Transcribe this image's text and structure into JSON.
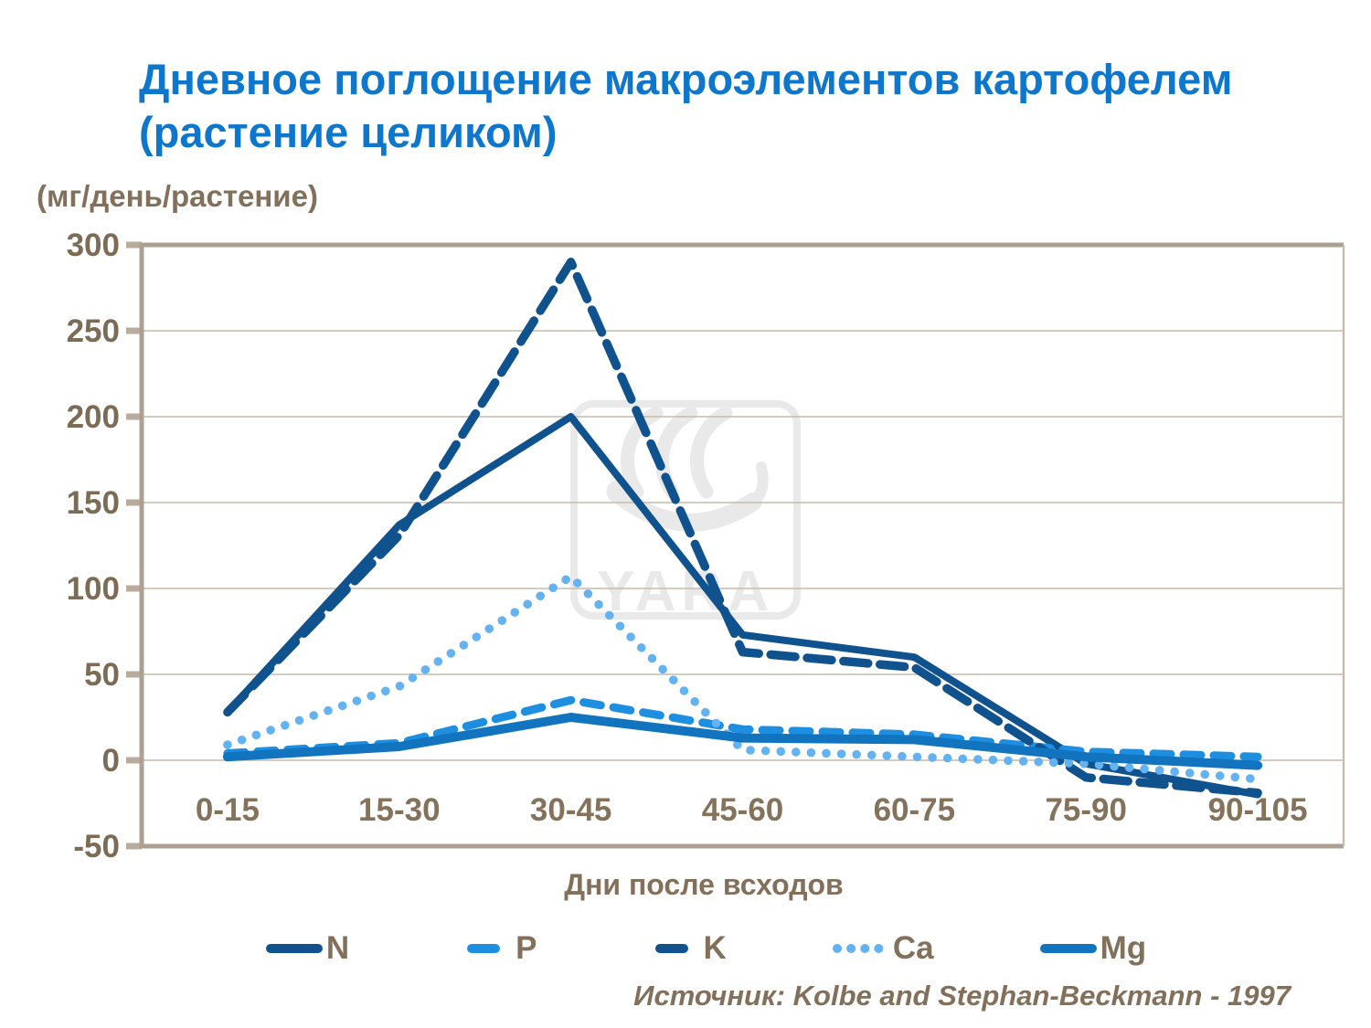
{
  "header": {
    "title_line1": "Дневное поглощение макроэлементов картофелем",
    "title_line2": "(растение целиком)"
  },
  "chart_data": {
    "type": "line",
    "title": "Дневное поглощение макроэлементов картофелем (растение целиком)",
    "ylabel": "(мг/день/растение)",
    "xlabel": "Дни после всходов",
    "categories": [
      "0-15",
      "15-30",
      "30-45",
      "45-60",
      "60-75",
      "75-90",
      "90-105"
    ],
    "ylim": [
      -50,
      300
    ],
    "ytick_step": 50,
    "ytick_labels": [
      "300",
      "250",
      "200",
      "150",
      "100",
      "50",
      "0",
      "-50"
    ],
    "grid": "horizontal",
    "legend_position": "bottom",
    "series": [
      {
        "name": "N",
        "color": "#10528E",
        "style": "solid",
        "values": [
          28,
          137,
          200,
          73,
          60,
          -2,
          -20
        ]
      },
      {
        "name": "P",
        "color": "#1E8FE0",
        "style": "dash",
        "values": [
          4,
          10,
          35,
          18,
          15,
          5,
          2
        ]
      },
      {
        "name": "K",
        "color": "#10528E",
        "style": "long-dash",
        "values": [
          28,
          131,
          290,
          63,
          54,
          -10,
          -19
        ]
      },
      {
        "name": "Ca",
        "color": "#63B2F2",
        "style": "dot",
        "values": [
          9,
          43,
          107,
          6,
          2,
          -2,
          -11
        ]
      },
      {
        "name": "Mg",
        "color": "#1273BE",
        "style": "solid",
        "values": [
          2,
          8,
          25,
          13,
          12,
          2,
          -3
        ]
      }
    ],
    "watermark": "YARA",
    "axis_colors": {
      "axis_line": "#ABA091",
      "gridline": "#C7BBAA",
      "tick_stub": "#B9AC9C",
      "tick_label": "#7D6C55",
      "category_label": "#84725B",
      "watermark_gray": "#E9E9E9"
    }
  },
  "footer": {
    "source": "Источник: Kolbe and Stephan-Beckmann - 1997"
  }
}
